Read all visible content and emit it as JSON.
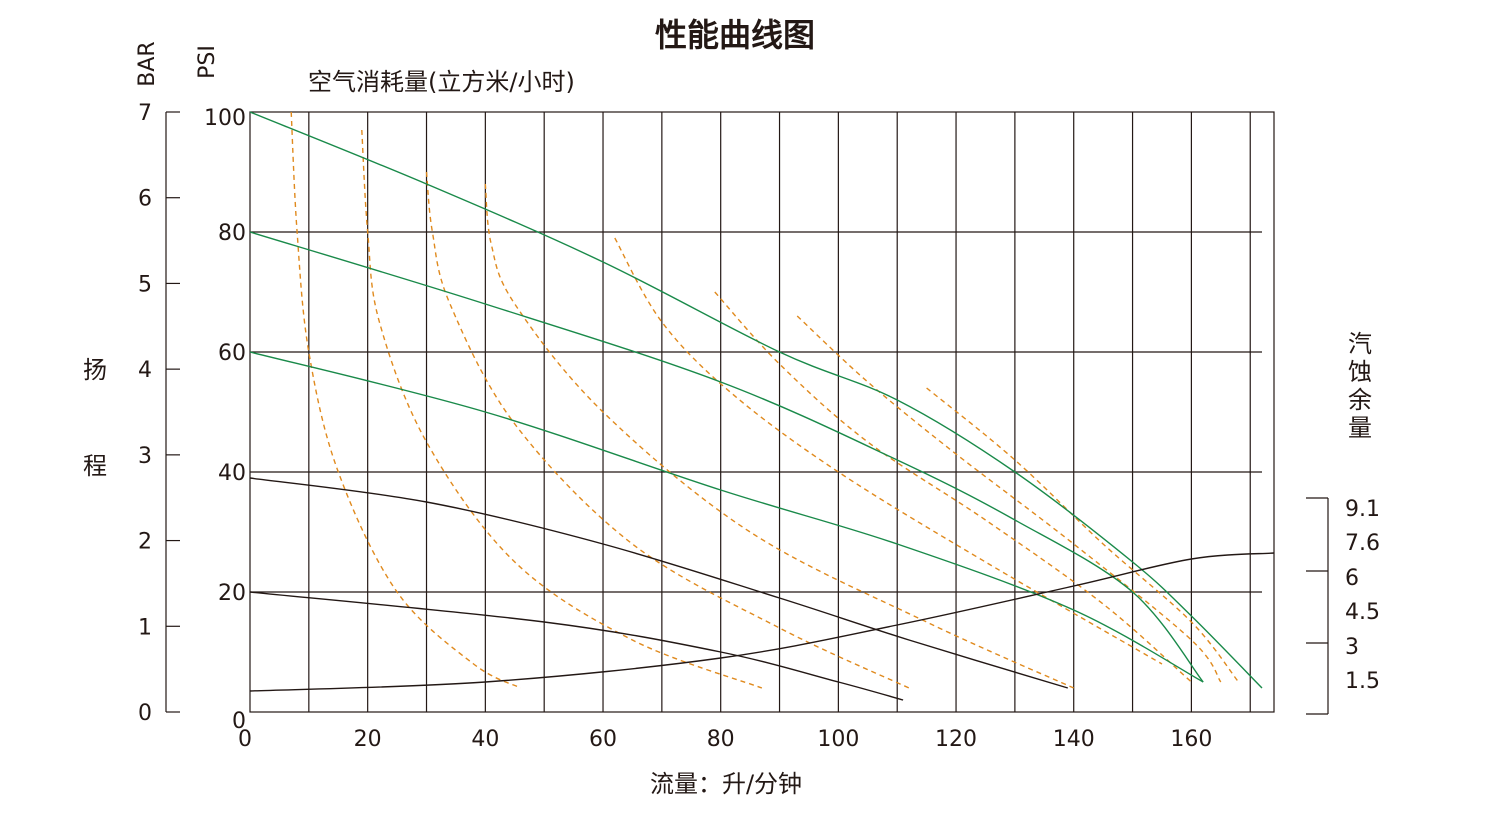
{
  "chart_data": {
    "type": "line",
    "title": "性能曲线图",
    "xlabel": "流量：升/分钟",
    "air_label": "空气消耗量(立方米/小时)",
    "unit_bar": "BAR",
    "unit_psi": "PSI",
    "head_label": [
      "扬",
      "程"
    ],
    "npsh_label": [
      "汽",
      "蚀",
      "余",
      "量"
    ],
    "xlim": [
      0,
      172
    ],
    "ylim_psi": [
      0,
      100
    ],
    "x_ticks": [
      "0",
      "20",
      "40",
      "60",
      "80",
      "100",
      "120",
      "140",
      "160"
    ],
    "psi_ticks": [
      "0",
      "20",
      "40",
      "60",
      "80",
      "100"
    ],
    "bar_ticks": [
      "0",
      "1",
      "2",
      "3",
      "4",
      "5",
      "6",
      "7"
    ],
    "npsh_ticks": [
      "1.5",
      "3",
      "4.5",
      "6",
      "7.6",
      "9.1"
    ],
    "colors": {
      "head": "#1a8a4a",
      "air": "#e08a1e",
      "pressure": "#231815",
      "grid": "#231815"
    },
    "head_curves": [
      {
        "x": [
          0,
          30,
          60,
          90,
          110,
          130,
          150,
          160,
          172
        ],
        "y": [
          100,
          88,
          75,
          60,
          52,
          40,
          25,
          16,
          4
        ]
      },
      {
        "x": [
          0,
          40,
          80,
          110,
          130,
          150,
          162
        ],
        "y": [
          80,
          68,
          55,
          42,
          32,
          20,
          5
        ]
      },
      {
        "x": [
          0,
          40,
          80,
          110,
          140,
          162
        ],
        "y": [
          60,
          50,
          37,
          28,
          17,
          5
        ]
      },
      {
        "x": [
          0,
          30,
          60,
          90,
          112,
          139
        ],
        "y": [
          39,
          35,
          28,
          19,
          12,
          4
        ]
      },
      {
        "x": [
          0,
          50,
          80,
          100,
          111
        ],
        "y": [
          20,
          15,
          10,
          5,
          2
        ]
      }
    ],
    "air_curves": [
      {
        "x": [
          7,
          8,
          10,
          15,
          25,
          38,
          46
        ],
        "y": [
          100,
          80,
          60,
          40,
          20,
          8,
          4
        ]
      },
      {
        "x": [
          19,
          20,
          22,
          30,
          45,
          65,
          87
        ],
        "y": [
          97,
          80,
          65,
          45,
          25,
          12,
          4
        ]
      },
      {
        "x": [
          30,
          31,
          34,
          45,
          65,
          90,
          112
        ],
        "y": [
          90,
          80,
          68,
          48,
          28,
          14,
          4
        ]
      },
      {
        "x": [
          40,
          41,
          45,
          60,
          85,
          115,
          140
        ],
        "y": [
          88,
          78,
          68,
          50,
          30,
          15,
          4
        ]
      },
      {
        "x": [
          62,
          70,
          82,
          100,
          125,
          155
        ],
        "y": [
          79,
          65,
          53,
          40,
          25,
          8
        ]
      },
      {
        "x": [
          79,
          90,
          105,
          125,
          145,
          160
        ],
        "y": [
          70,
          58,
          45,
          32,
          18,
          5
        ]
      },
      {
        "x": [
          93,
          105,
          120,
          140,
          160,
          165
        ],
        "y": [
          66,
          55,
          43,
          28,
          12,
          5
        ]
      },
      {
        "x": [
          115,
          130,
          145,
          160,
          168
        ],
        "y": [
          54,
          42,
          28,
          15,
          5
        ]
      }
    ],
    "npsh_curve": {
      "x": [
        0,
        40,
        80,
        110,
        140,
        160,
        174
      ],
      "y": [
        3.5,
        5,
        9,
        14.5,
        21,
        25.5,
        26.5
      ]
    }
  }
}
